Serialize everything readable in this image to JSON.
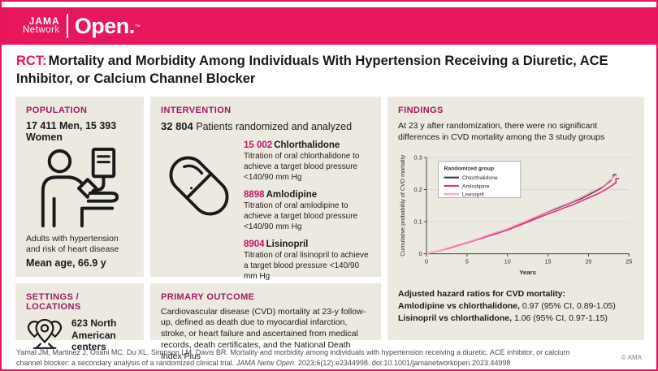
{
  "brand": {
    "jama": "JAMA",
    "network": "Network",
    "open": "Open.",
    "tm": "™"
  },
  "title": {
    "tag": "RCT:",
    "text": "Mortality and Morbidity Among Individuals With Hypertension Receiving a Diuretic, ACE Inhibitor, or Calcium Channel Blocker"
  },
  "population": {
    "heading": "POPULATION",
    "stat": "17 411 Men, 15 393 Women",
    "icon": "patient-blood-pressure-icon",
    "description": "Adults with hypertension and risk of heart disease",
    "mean_age": "Mean age, 66.9 y"
  },
  "intervention": {
    "heading": "INTERVENTION",
    "count": "32 804",
    "count_label": "Patients randomized and analyzed",
    "icon": "pill-capsule-icon",
    "drugs": [
      {
        "count": "15 002",
        "name": "Chlorthalidone",
        "description": "Titration of oral chlorthalidone to achieve a target blood pressure <140/90 mm Hg"
      },
      {
        "count": "8898",
        "name": "Amlodipine",
        "description": "Titration of oral amlodipine to achieve a target blood pressure <140/90 mm Hg"
      },
      {
        "count": "8904",
        "name": "Lisinopril",
        "description": "Titration of oral lisinopril to achieve a target blood pressure <140/90 mm Hg"
      }
    ]
  },
  "findings": {
    "heading": "FINDINGS",
    "summary": "At 23 y after randomization, there were no significant differences in CVD mortality among the 3 study groups",
    "hazard_heading": "Adjusted hazard ratios for CVD mortality:",
    "hazard_rows": [
      {
        "label": "Amlodipine vs chlorthalidone,",
        "value": " 0.97 (95% CI, 0.89-1.05)"
      },
      {
        "label": "Lisinopril vs chlorthalidone,",
        "value": " 1.06 (95% CI, 0.97-1.15)"
      }
    ]
  },
  "settings": {
    "heading": "SETTINGS / LOCATIONS",
    "icon": "map-pins-icon",
    "stat": "623 North American centers"
  },
  "primary_outcome": {
    "heading": "PRIMARY OUTCOME",
    "text": "Cardiovascular disease (CVD) mortality at 23-y follow-up, defined as death due to myocardial infarction, stroke, or heart failure and ascertained from medical records, death certificates, and the National Death Index Plus"
  },
  "footer": {
    "citation_pre": "Yamal JM, Martinez J, Osani MC, Du XL, Simpson LM, Davis BR. Mortality and morbidity among individuals with hypertension receiving a diuretic, ACE inhibitor, or calcium channel blocker: a secondary analysis of a randomized clinical trial. ",
    "citation_journal": "JAMA Netw Open",
    "citation_post": ". 2023;6(12):e2344998. doi:10.1001/jamanetworkopen.2023.44998",
    "copyright": "© AMA"
  },
  "colors": {
    "brand_pink": "#E8175D",
    "heading_magenta": "#9E1A62",
    "number_pink": "#C21568",
    "panel_bg": "#ECEAE0",
    "chlorthalidone_line": "#3D3D3D",
    "amlodipine_line": "#EE2A80",
    "lisinopril_line": "#F5A6C8"
  },
  "chart_data": {
    "type": "line",
    "title": "",
    "xlabel": "Years",
    "ylabel": "Cumulative probability of CVD mortality",
    "xlim": [
      0,
      25
    ],
    "ylim": [
      0,
      0.3
    ],
    "xticks": [
      0,
      5,
      10,
      15,
      20,
      25
    ],
    "yticks": [
      0,
      0.1,
      0.2,
      0.3
    ],
    "grid": true,
    "legend_title": "Randomized group",
    "legend_position": "upper-left",
    "series": [
      {
        "name": "Chlorthalidone",
        "color": "#3D3D3D",
        "points": [
          [
            0,
            0
          ],
          [
            1,
            0.006
          ],
          [
            2,
            0.013
          ],
          [
            3,
            0.021
          ],
          [
            4,
            0.028
          ],
          [
            5,
            0.036
          ],
          [
            6,
            0.044
          ],
          [
            7,
            0.052
          ],
          [
            8,
            0.061
          ],
          [
            9,
            0.069
          ],
          [
            10,
            0.078
          ],
          [
            11,
            0.088
          ],
          [
            12,
            0.098
          ],
          [
            13,
            0.108
          ],
          [
            14,
            0.119
          ],
          [
            15,
            0.13
          ],
          [
            16,
            0.14
          ],
          [
            17,
            0.15
          ],
          [
            18,
            0.16
          ],
          [
            19,
            0.17
          ],
          [
            20,
            0.183
          ],
          [
            21,
            0.196
          ],
          [
            21.5,
            0.203
          ],
          [
            22,
            0.212
          ],
          [
            22.5,
            0.222
          ],
          [
            22.8,
            0.23
          ],
          [
            23,
            0.238
          ],
          [
            23.1,
            0.245
          ],
          [
            23.1,
            0.247
          ],
          [
            23.45,
            0.247
          ]
        ]
      },
      {
        "name": "Amlodipine",
        "color": "#EE2A80",
        "points": [
          [
            0,
            0
          ],
          [
            1,
            0.006
          ],
          [
            2,
            0.012
          ],
          [
            3,
            0.019
          ],
          [
            4,
            0.027
          ],
          [
            5,
            0.034
          ],
          [
            6,
            0.042
          ],
          [
            7,
            0.05
          ],
          [
            8,
            0.058
          ],
          [
            9,
            0.066
          ],
          [
            10,
            0.074
          ],
          [
            11,
            0.084
          ],
          [
            12,
            0.094
          ],
          [
            13,
            0.104
          ],
          [
            14,
            0.114
          ],
          [
            15,
            0.124
          ],
          [
            16,
            0.133
          ],
          [
            17,
            0.143
          ],
          [
            18,
            0.152
          ],
          [
            19,
            0.163
          ],
          [
            20,
            0.174
          ],
          [
            21,
            0.185
          ],
          [
            22,
            0.198
          ],
          [
            22.5,
            0.206
          ],
          [
            23,
            0.214
          ],
          [
            23.3,
            0.22
          ],
          [
            23.4,
            0.22
          ],
          [
            23.4,
            0.234
          ],
          [
            23.8,
            0.234
          ]
        ]
      },
      {
        "name": "Lisinopril",
        "color": "#F5A6C8",
        "points": [
          [
            0,
            0
          ],
          [
            1,
            0.006
          ],
          [
            2,
            0.013
          ],
          [
            3,
            0.021
          ],
          [
            4,
            0.029
          ],
          [
            5,
            0.036
          ],
          [
            6,
            0.044
          ],
          [
            7,
            0.053
          ],
          [
            8,
            0.062
          ],
          [
            9,
            0.07
          ],
          [
            10,
            0.078
          ],
          [
            11,
            0.089
          ],
          [
            12,
            0.099
          ],
          [
            13,
            0.11
          ],
          [
            14,
            0.121
          ],
          [
            15,
            0.132
          ],
          [
            16,
            0.143
          ],
          [
            17,
            0.153
          ],
          [
            18,
            0.163
          ],
          [
            19,
            0.175
          ],
          [
            20,
            0.188
          ],
          [
            21,
            0.2
          ],
          [
            22,
            0.214
          ],
          [
            22.5,
            0.226
          ],
          [
            23,
            0.236
          ],
          [
            23.2,
            0.242
          ],
          [
            23.2,
            0.243
          ],
          [
            23.55,
            0.243
          ]
        ]
      }
    ]
  }
}
